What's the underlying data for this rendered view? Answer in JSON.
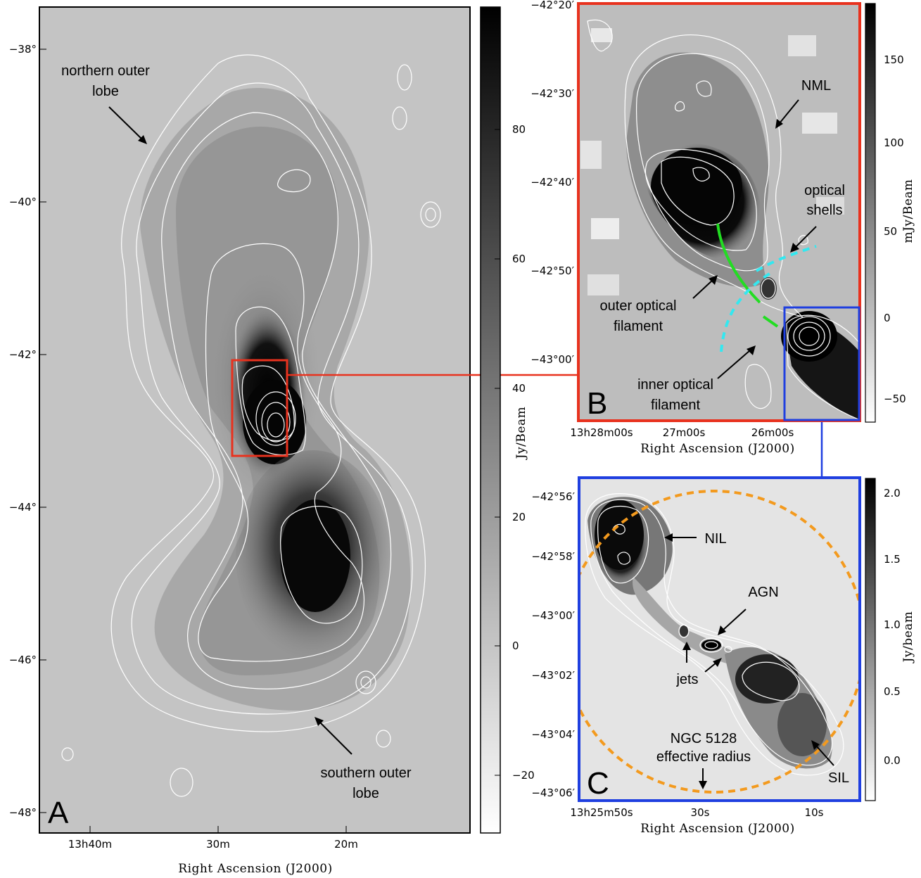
{
  "panels": {
    "A": {
      "letter": "A",
      "y_ticks": [
        "−38°",
        "−40°",
        "−42°",
        "−44°",
        "−46°",
        "−48°"
      ],
      "x_ticks": [
        "13h40m",
        "30m",
        "20m"
      ],
      "x_label": "Right Ascension (J2000)",
      "colorbar_label": "Jy/Beam",
      "colorbar_ticks": [
        "80",
        "60",
        "40",
        "20",
        "0",
        "−20"
      ],
      "annotations": {
        "northern_line1": "northern outer",
        "northern_line2": "lobe",
        "southern_line1": "southern outer",
        "southern_line2": "lobe"
      },
      "inset_box_color": "#e8321e"
    },
    "B": {
      "letter": "B",
      "y_ticks": [
        "−42°20′",
        "−42°30′",
        "−42°40′",
        "−42°50′",
        "−43°00′"
      ],
      "x_ticks": [
        "13h28m00s",
        "27m00s",
        "26m00s"
      ],
      "x_label": "Right Ascension (J2000)",
      "colorbar_label": "mJy/Beam",
      "colorbar_ticks": [
        "150",
        "100",
        "50",
        "0",
        "−50"
      ],
      "annotations": {
        "nml": "NML",
        "optical_shells_1": "optical",
        "optical_shells_2": "shells",
        "outer_filament_1": "outer optical",
        "outer_filament_2": "filament",
        "inner_filament_1": "inner optical",
        "inner_filament_2": "filament"
      },
      "frame_color": "#e8321e",
      "inset_box_color": "#1f3fe0",
      "filament_color": "#22dd22",
      "shell_color": "#33e8f0"
    },
    "C": {
      "letter": "C",
      "y_ticks": [
        "−42°56′",
        "−42°58′",
        "−43°00′",
        "−43°02′",
        "−43°04′",
        "−43°06′"
      ],
      "x_ticks": [
        "13h25m50s",
        "30s",
        "10s"
      ],
      "x_label": "Right Ascension (J2000)",
      "colorbar_label": "Jy/beam",
      "colorbar_ticks": [
        "2.0",
        "1.5",
        "1.0",
        "0.5",
        "0.0"
      ],
      "annotations": {
        "nil": "NIL",
        "agn": "AGN",
        "jets": "jets",
        "ngc_1": "NGC 5128",
        "ngc_2": "effective radius",
        "sil": "SIL"
      },
      "frame_color": "#1f3fe0",
      "radius_circle_color": "#f39a1e"
    }
  }
}
